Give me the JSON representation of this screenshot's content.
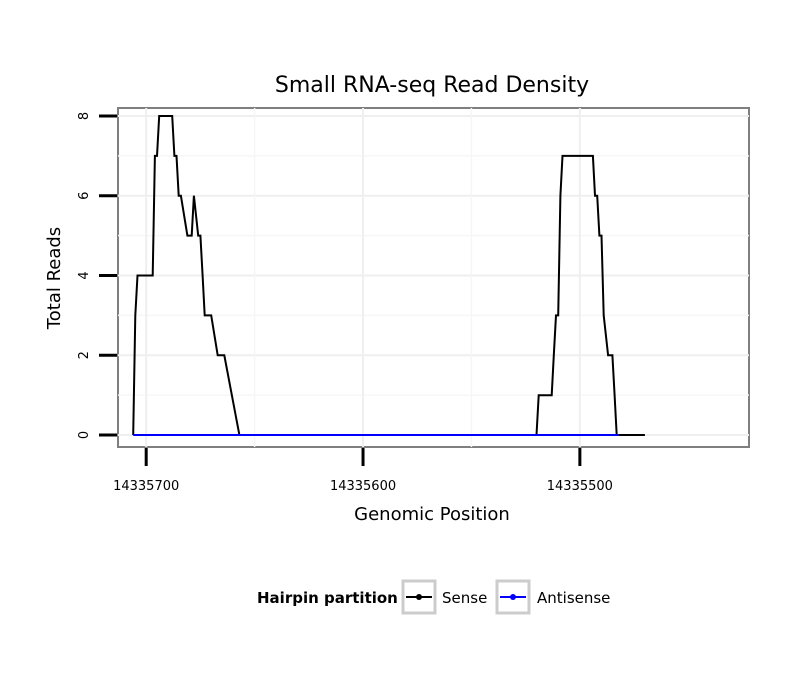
{
  "chart_data": {
    "type": "line",
    "title": "Small RNA-seq Read Density",
    "xlabel": "Genomic Position",
    "ylabel": "Total Reads",
    "x_reversed": true,
    "xlim": [
      14335713,
      14335422
    ],
    "ylim": [
      -0.3,
      8.2
    ],
    "x_ticks": [
      14335700,
      14335600,
      14335500
    ],
    "x_tick_labels": [
      "14335700",
      "14335600",
      "14335500"
    ],
    "y_ticks": [
      0,
      2,
      4,
      6,
      8
    ],
    "y_tick_labels": [
      "0",
      "2",
      "4",
      "6",
      "8"
    ],
    "grid": true,
    "legend": {
      "title": "Hairpin partition",
      "position": "bottom",
      "entries": [
        "Sense",
        "Antisense"
      ]
    },
    "series": [
      {
        "name": "Sense",
        "color": "#000000",
        "x": [
          14335706,
          14335705,
          14335704,
          14335703,
          14335697,
          14335696,
          14335695,
          14335694,
          14335690,
          14335689,
          14335688,
          14335687,
          14335686,
          14335685,
          14335684,
          14335681,
          14335680,
          14335679,
          14335678,
          14335676,
          14335675,
          14335674,
          14335673,
          14335672,
          14335671,
          14335670,
          14335667,
          14335666,
          14335665,
          14335664,
          14335657,
          14335656,
          14335520,
          14335519,
          14335518,
          14335513,
          14335512,
          14335511,
          14335510,
          14335509,
          14335508,
          14335495,
          14335494,
          14335493,
          14335492,
          14335491,
          14335490,
          14335489,
          14335487,
          14335486,
          14335485,
          14335484,
          14335483,
          14335482,
          14335470
        ],
        "y": [
          0,
          3,
          4,
          4,
          4,
          7,
          7,
          8,
          8,
          8,
          8,
          7,
          7,
          6,
          6,
          5,
          5,
          5,
          6,
          5,
          5,
          4,
          3,
          3,
          3,
          3,
          2,
          2,
          2,
          2,
          0,
          0,
          0,
          1,
          1,
          1,
          2,
          3,
          3,
          6,
          7,
          7,
          7,
          6,
          6,
          5,
          5,
          3,
          2,
          2,
          2,
          1,
          0,
          0,
          0
        ]
      },
      {
        "name": "Antisense",
        "color": "#0000ff",
        "x": [
          14335706,
          14335656,
          14335520,
          14335482
        ],
        "y": [
          0,
          0,
          0,
          0
        ]
      }
    ]
  }
}
